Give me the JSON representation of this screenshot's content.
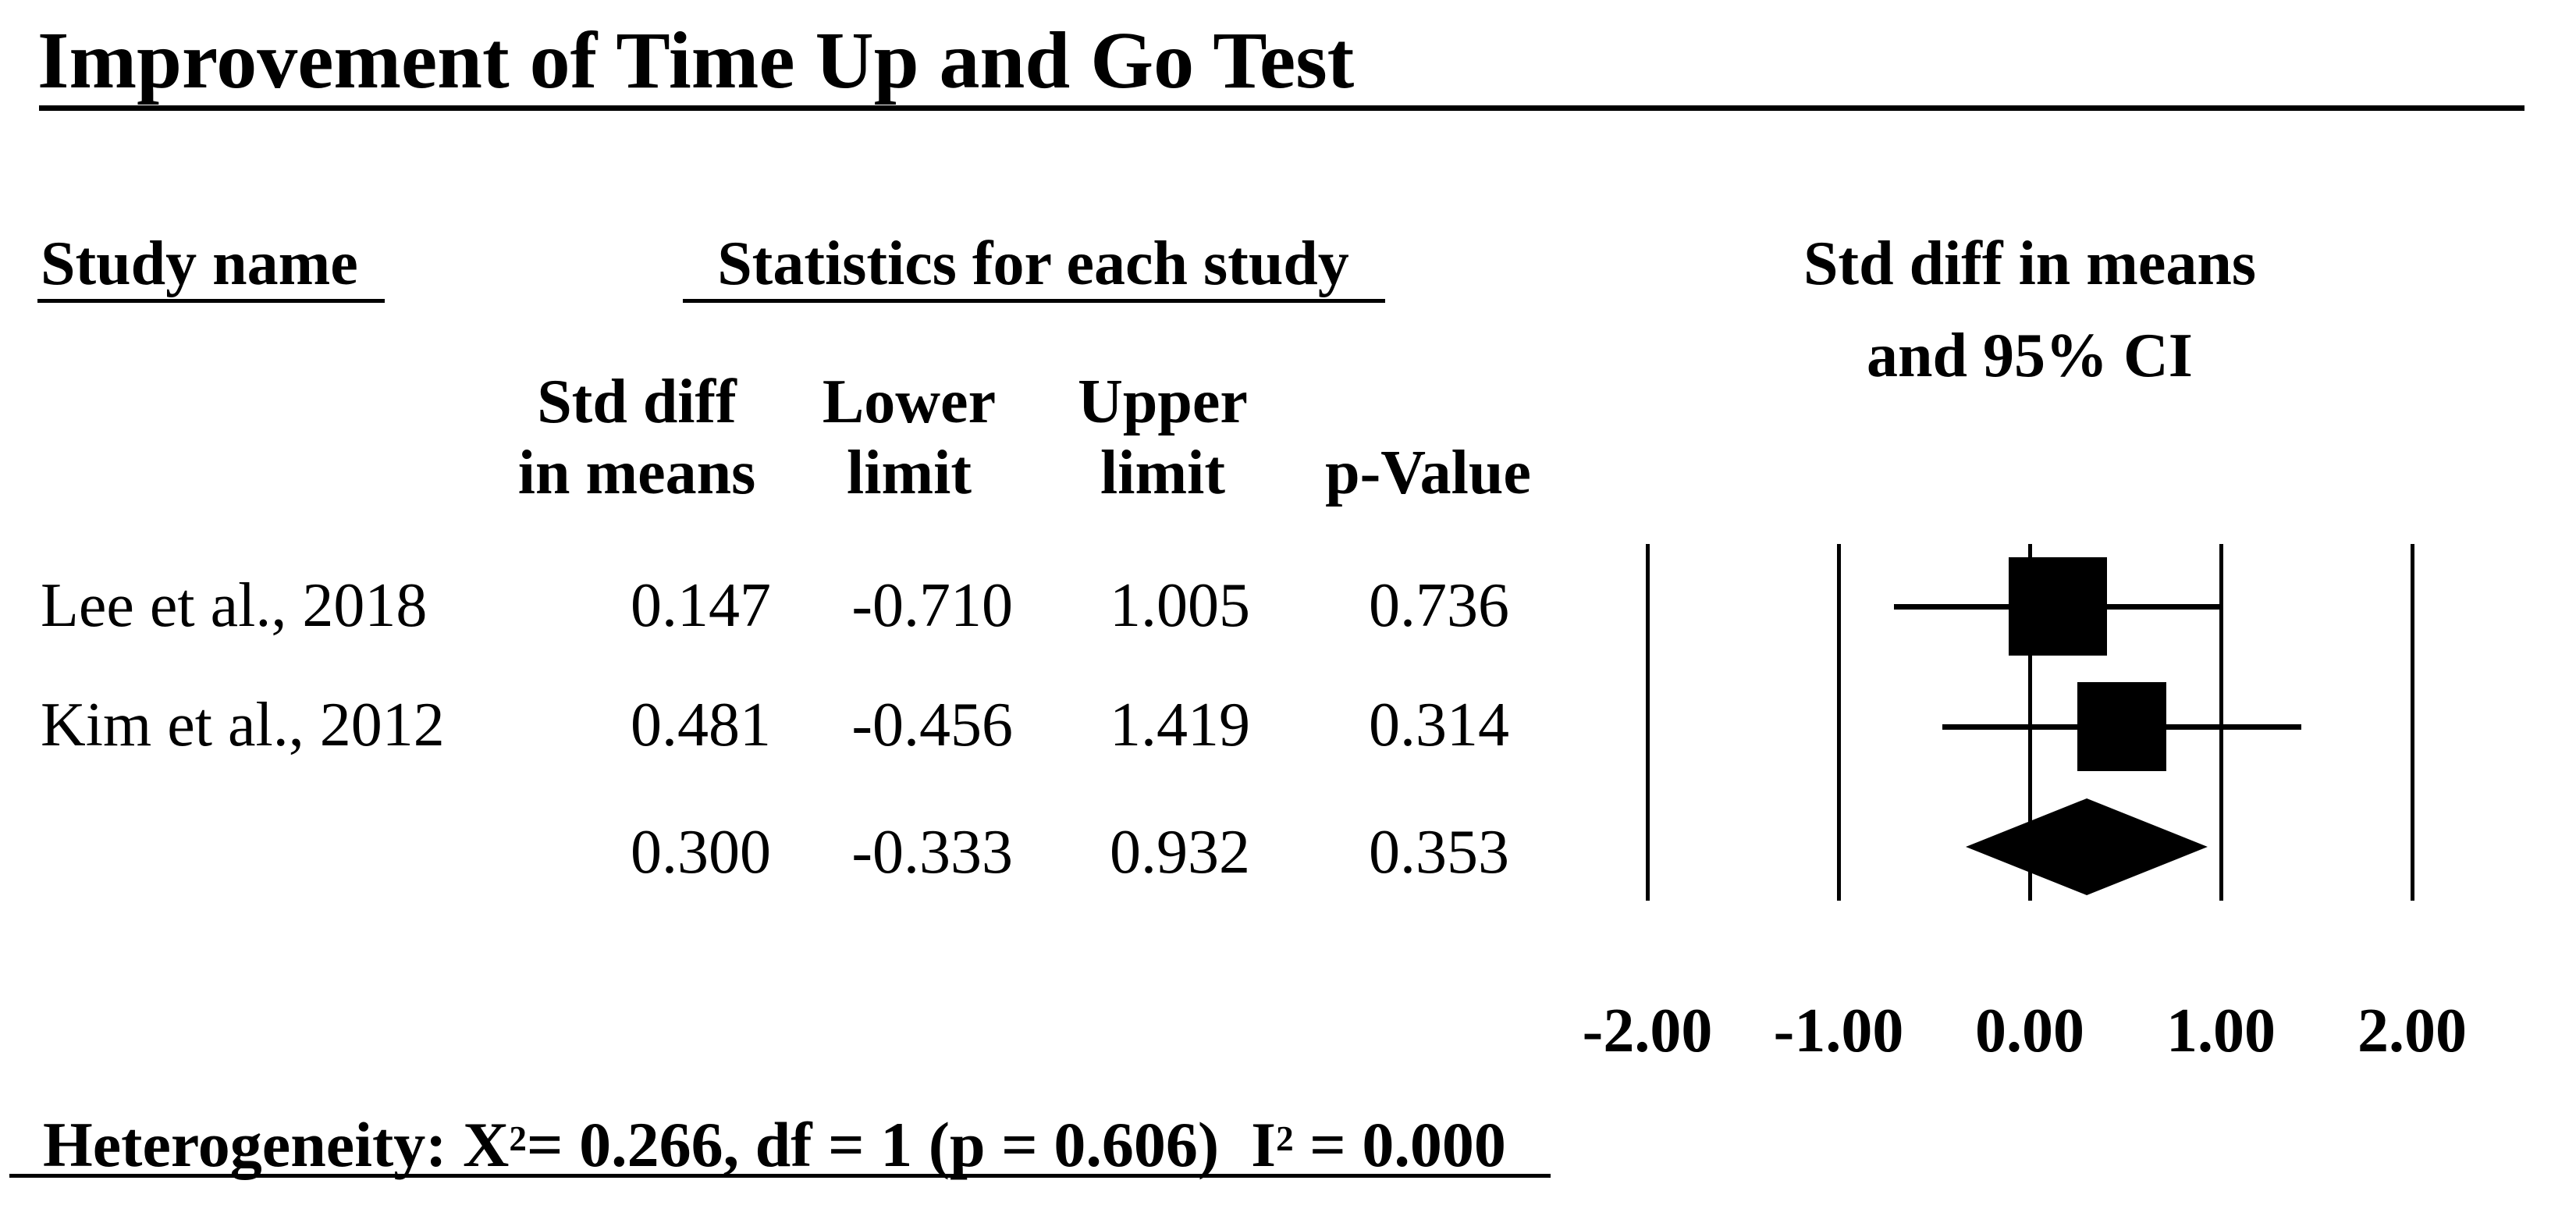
{
  "title": "Improvement of Time Up and Go Test",
  "colors": {
    "ink": "#000000",
    "background": "#ffffff"
  },
  "table": {
    "col_study": "Study name",
    "group_stats": "Statistics for each study",
    "sub_headers": {
      "effect_line1": "Std diff",
      "effect_line2": "in means",
      "lower_line1": "Lower",
      "lower_line2": "limit",
      "upper_line1": "Upper",
      "upper_line2": "limit",
      "pvalue": "p-Value"
    },
    "rows": [
      {
        "study": "Lee et al., 2018",
        "std_diff": "0.147",
        "lower": "-0.710",
        "upper": "1.005",
        "p": "0.736"
      },
      {
        "study": "Kim et al., 2012",
        "std_diff": "0.481",
        "lower": "-0.456",
        "upper": "1.419",
        "p": "0.314"
      },
      {
        "study": "",
        "std_diff": "0.300",
        "lower": "-0.333",
        "upper": "0.932",
        "p": "0.353"
      }
    ]
  },
  "plot": {
    "header_line1": "Std diff in means",
    "header_line2": "and 95% CI"
  },
  "footer": {
    "het_prefix": "Heterogeneity: X",
    "het_sup1": "2",
    "het_mid": "= 0.266, df = 1 (p = 0.606)  I",
    "het_sup2": "2",
    "het_suffix": " = 0.000"
  },
  "chart_data": {
    "type": "forest",
    "title": "Improvement of Time Up and Go Test",
    "outcome_header": "Std diff in means and 95% CI",
    "x_axis": {
      "ticks": [
        -2,
        -1,
        0,
        1,
        2
      ],
      "tick_labels": [
        "-2.00",
        "-1.00",
        "0.00",
        "1.00",
        "2.00"
      ],
      "range": [
        -2.5,
        2.5
      ],
      "grid": true
    },
    "series": [
      {
        "name": "Lee et al., 2018",
        "std_diff_in_means": 0.147,
        "lower_limit": -0.71,
        "upper_limit": 1.005,
        "p_value": 0.736,
        "marker": "square"
      },
      {
        "name": "Kim et al., 2012",
        "std_diff_in_means": 0.481,
        "lower_limit": -0.456,
        "upper_limit": 1.419,
        "p_value": 0.314,
        "marker": "square"
      },
      {
        "name": "",
        "std_diff_in_means": 0.3,
        "lower_limit": -0.333,
        "upper_limit": 0.932,
        "p_value": 0.353,
        "marker": "diamond"
      }
    ],
    "heterogeneity": {
      "chi_squared": 0.266,
      "df": 1,
      "p": 0.606,
      "I_squared": 0.0
    }
  }
}
